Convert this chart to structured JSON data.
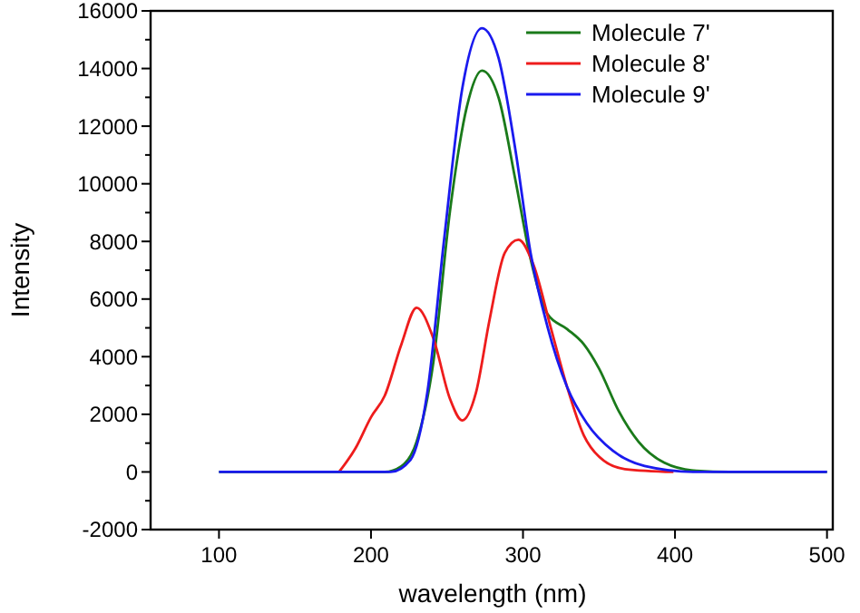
{
  "chart_data": {
    "type": "line",
    "xlabel": "wavelength (nm)",
    "ylabel": "Intensity",
    "xlim": [
      55,
      505
    ],
    "ylim": [
      -2000,
      16000
    ],
    "xticks": [
      100,
      200,
      300,
      400,
      500
    ],
    "yticks": [
      -2000,
      0,
      2000,
      4000,
      6000,
      8000,
      10000,
      12000,
      14000,
      16000
    ],
    "grid": false,
    "legend": "top right",
    "marker": "none",
    "line_style": "solid",
    "series": [
      {
        "name": "Molecule 7'",
        "color": "#1a7a1a",
        "x": [
          100,
          209,
          220,
          230,
          241,
          252,
          263,
          273,
          284,
          295,
          305,
          316,
          329,
          340,
          350,
          363,
          376,
          393,
          414,
          436,
          500
        ],
        "values": [
          0,
          0,
          200,
          1050,
          3800,
          9070,
          12660,
          13930,
          12980,
          10130,
          7390,
          5490,
          4960,
          4430,
          3590,
          2110,
          1050,
          320,
          40,
          0,
          0
        ]
      },
      {
        "name": "Molecule 8'",
        "color": "#ee1c1c",
        "x": [
          179,
          190,
          200,
          209,
          220,
          230,
          241,
          252,
          260,
          269,
          278,
          288,
          297,
          307,
          318,
          329,
          340,
          350,
          367,
          399
        ],
        "values": [
          0,
          840,
          1900,
          2640,
          4430,
          5700,
          4640,
          2530,
          1790,
          2740,
          5280,
          7600,
          8060,
          7170,
          5060,
          2950,
          1270,
          530,
          100,
          0
        ]
      },
      {
        "name": "Molecule 9'",
        "color": "#1a1aee",
        "x": [
          100,
          213,
          226,
          237,
          248,
          260,
          273,
          284,
          295,
          305,
          316,
          329,
          342,
          359,
          380,
          414,
          500
        ],
        "values": [
          0,
          0,
          420,
          2740,
          8020,
          13290,
          15400,
          14350,
          11180,
          7600,
          5060,
          2950,
          1690,
          740,
          210,
          0,
          0
        ]
      }
    ]
  }
}
